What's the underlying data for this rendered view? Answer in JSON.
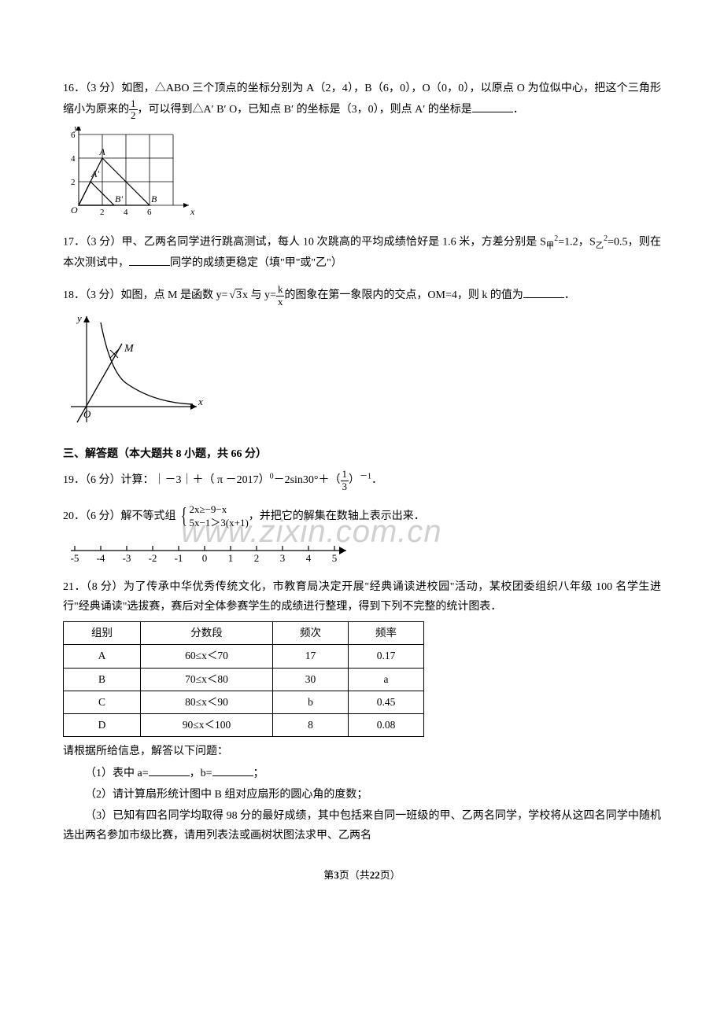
{
  "q16": {
    "prefix": "16．（3 分）如图，△ABO 三个顶点的坐标分别为 A（2，4），B（6，0），O（0，0），以原点 O 为位似中心，把这个三角形缩小为原来的",
    "frac_num": "1",
    "frac_den": "2",
    "mid": "，可以得到△A′ B′ O，已知点 B′ 的坐标是（3，0），则点 A′ 的坐标是",
    "suffix": "．",
    "graph": {
      "bg": "#ffffff",
      "axis_color": "#000000",
      "grid_color": "#000000",
      "italic_labels": [
        "y",
        "x",
        "O",
        "A",
        "A'",
        "B",
        "B'"
      ],
      "y_ticks": [
        "2",
        "4",
        "6"
      ],
      "x_ticks": [
        "2",
        "4",
        "6"
      ],
      "x_range": [
        0,
        7
      ],
      "y_range": [
        0,
        7
      ],
      "A": [
        2,
        4
      ],
      "Ap": [
        1,
        2
      ],
      "B": [
        6,
        0
      ],
      "Bp": [
        3,
        0
      ]
    }
  },
  "q17": {
    "text_a": "17．（3 分）甲、乙两名同学进行跳高测试，每人 10 次跳高的平均成绩恰好是 1.6 米，方差分别是 S",
    "sub1": "甲",
    "sq1": "2",
    "eq1": "=1.2，S",
    "sub2": "乙",
    "sq2": "2",
    "eq2": "=0.5，则在本次测试中，",
    "tail": "同学的成绩更稳定（填\"甲\"或\"乙\"）"
  },
  "q18": {
    "pre": "18．（3 分）如图，点 M 是函数 y=",
    "sqrt_arg": "3",
    "after_sqrt": "x 与 y=",
    "frac_num": "k",
    "frac_den": "x",
    "mid": "的图象在第一象限内的交点，OM=4，则 k 的值为",
    "suffix": "．",
    "graph": {
      "axis_color": "#000000",
      "M_label": "M",
      "O_label": "O",
      "x_label": "x",
      "y_label": "y"
    }
  },
  "section3_heading": "三、解答题（本大题共 8 小题，共 66 分）",
  "q19": {
    "pre": "19．（6 分）计算：｜－3｜＋（ π －2017）",
    "sup0": "0",
    "mid1": "－2sin30°＋（",
    "frac_num": "1",
    "frac_den": "3",
    "mid2": "）",
    "sup_neg1": "－1",
    "suffix": "．"
  },
  "q20": {
    "pre": "20．（6 分）解不等式组",
    "line1": "2x≥−9−x",
    "line2": "5x−1＞3(x+1)",
    "tail": "，并把它的解集在数轴上表示出来．",
    "number_line": {
      "ticks": [
        "-5",
        "-4",
        "-3",
        "-2",
        "-1",
        "0",
        "1",
        "2",
        "3",
        "4",
        "5"
      ],
      "axis_color": "#000000"
    }
  },
  "q21": {
    "para1": "21．（8 分）为了传承中华优秀传统文化，市教育局决定开展\"经典诵读进校园\"活动，某校团委组织八年级 100 名学生进行\"经典诵读\"选拔赛，赛后对全体参赛学生的成绩进行整理，得到下列不完整的统计图表．",
    "table": {
      "headers": [
        "组别",
        "分数段",
        "频次",
        "频率"
      ],
      "rows": [
        [
          "A",
          "60≤x＜70",
          "17",
          "0.17"
        ],
        [
          "B",
          "70≤x＜80",
          "30",
          "a"
        ],
        [
          "C",
          "80≤x＜90",
          "b",
          "0.45"
        ],
        [
          "D",
          "90≤x＜100",
          "8",
          "0.08"
        ]
      ]
    },
    "post_para": "请根据所给信息，解答以下问题：",
    "sub1_pre": "（1）表中 a=",
    "sub1_mid": "，b=",
    "sub1_suf": "；",
    "sub2": "（2）请计算扇形统计图中 B 组对应扇形的圆心角的度数；",
    "sub3": "（3）已知有四名同学均取得 98 分的最好成绩，其中包括来自同一班级的甲、乙两名同学，学校将从这四名同学中随机选出两名参加市级比赛，请用列表法或画树状图法求甲、乙两名"
  },
  "footer": {
    "pre": "第",
    "page": "3",
    "mid": "页（共",
    "total": "22",
    "suf": "页）"
  },
  "watermark": "www.zixin.com.cn"
}
